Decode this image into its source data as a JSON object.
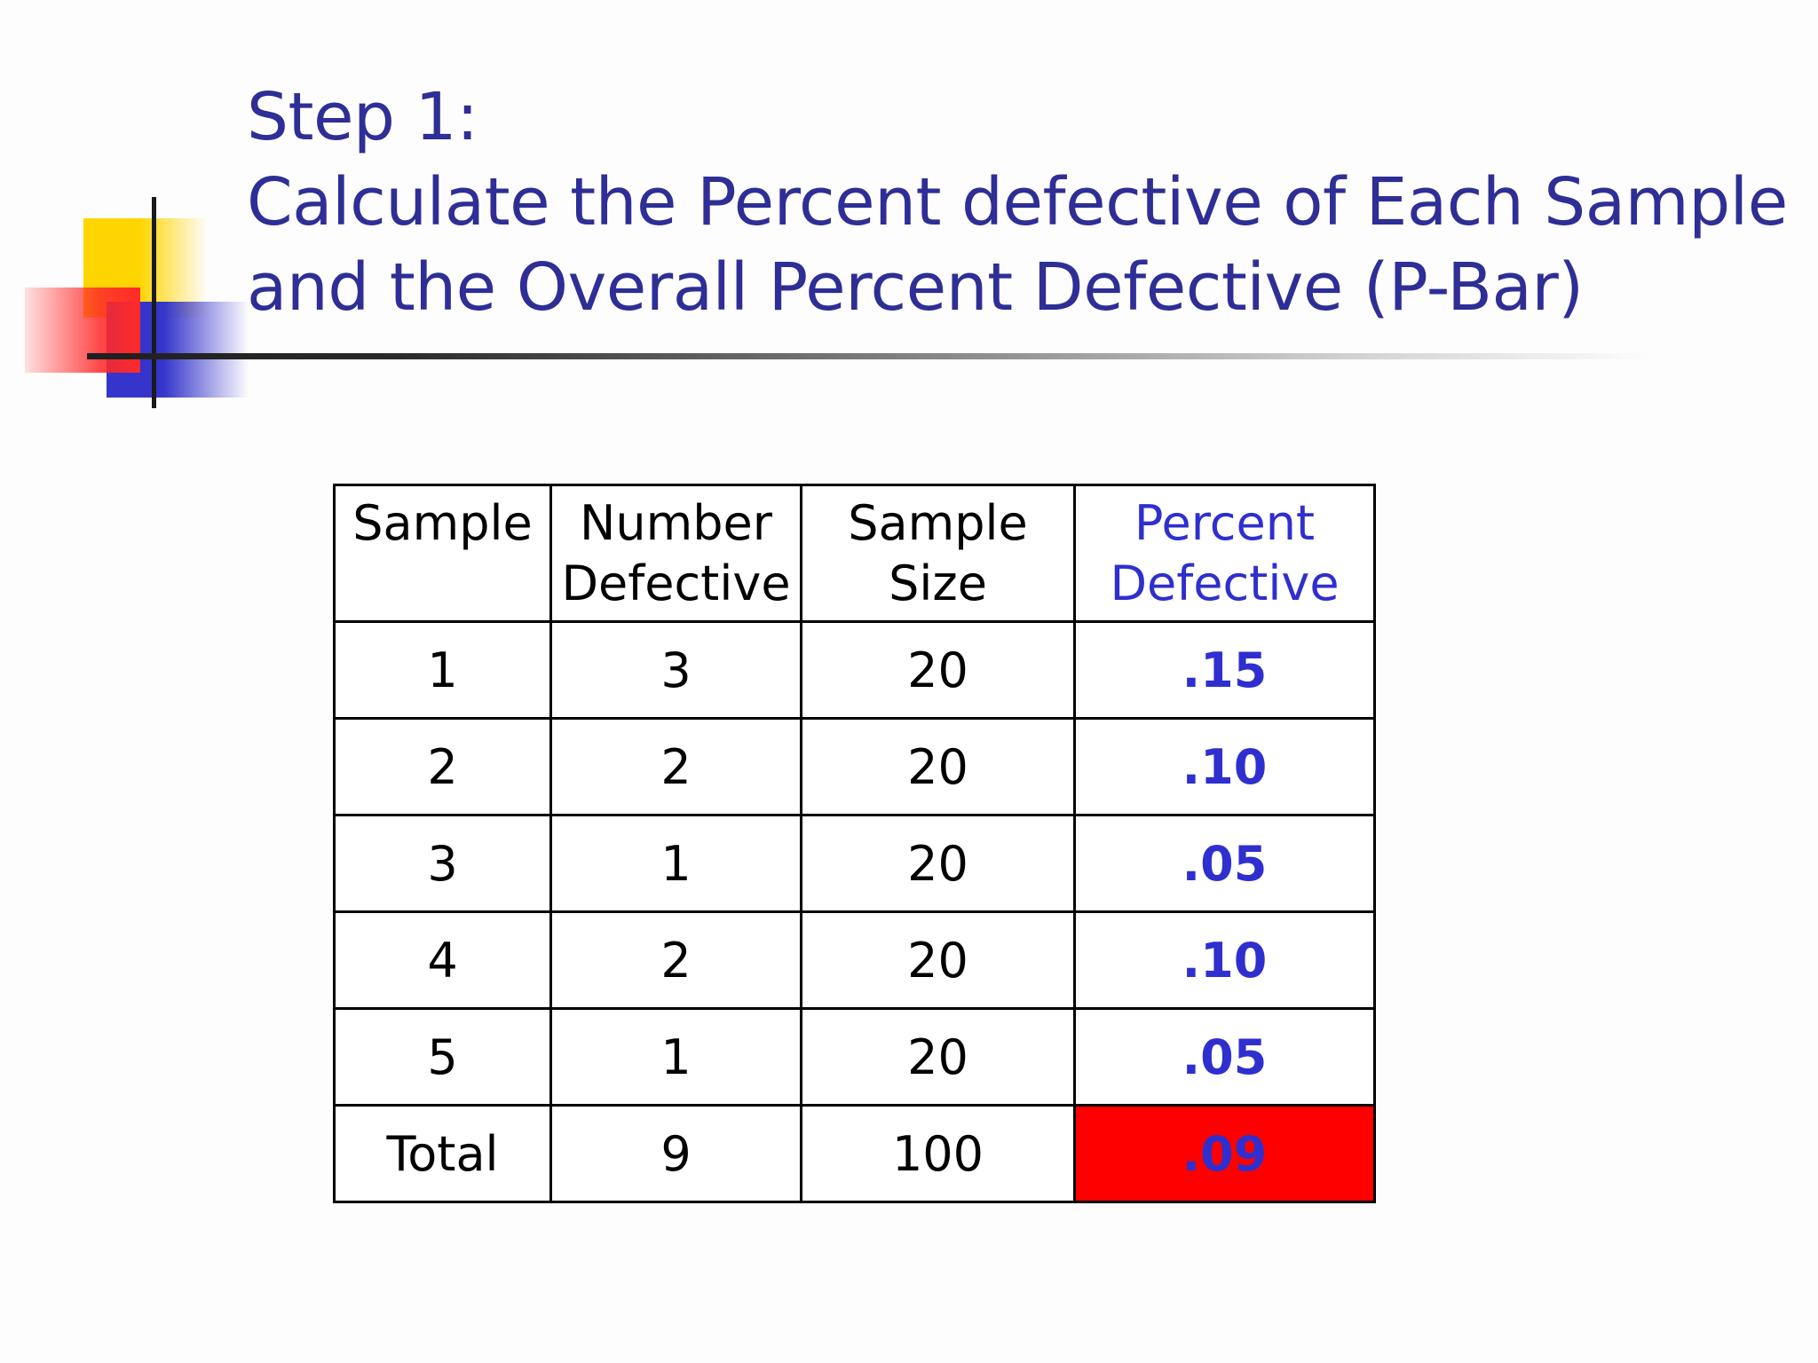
{
  "title": {
    "line1": "Step 1:",
    "line2": "Calculate the Percent defective of Each Sample",
    "line3": "and the Overall Percent Defective (P-Bar)"
  },
  "table": {
    "headers": {
      "sample": "Sample",
      "number_defective": "Number Defective",
      "sample_size": "Sample Size",
      "percent_defective": "Percent Defective"
    },
    "rows": [
      {
        "sample": "1",
        "number_defective": "3",
        "sample_size": "20",
        "percent_defective": ".15"
      },
      {
        "sample": "2",
        "number_defective": "2",
        "sample_size": "20",
        "percent_defective": ".10"
      },
      {
        "sample": "3",
        "number_defective": "1",
        "sample_size": "20",
        "percent_defective": ".05"
      },
      {
        "sample": "4",
        "number_defective": "2",
        "sample_size": "20",
        "percent_defective": ".10"
      },
      {
        "sample": "5",
        "number_defective": "1",
        "sample_size": "20",
        "percent_defective": ".05"
      }
    ],
    "total": {
      "sample": "Total",
      "number_defective": "9",
      "sample_size": "100",
      "percent_defective": ".09"
    }
  },
  "colors": {
    "title": "#2e2e96",
    "percent_text": "#2f2fcf",
    "total_highlight": "#ff0000"
  }
}
